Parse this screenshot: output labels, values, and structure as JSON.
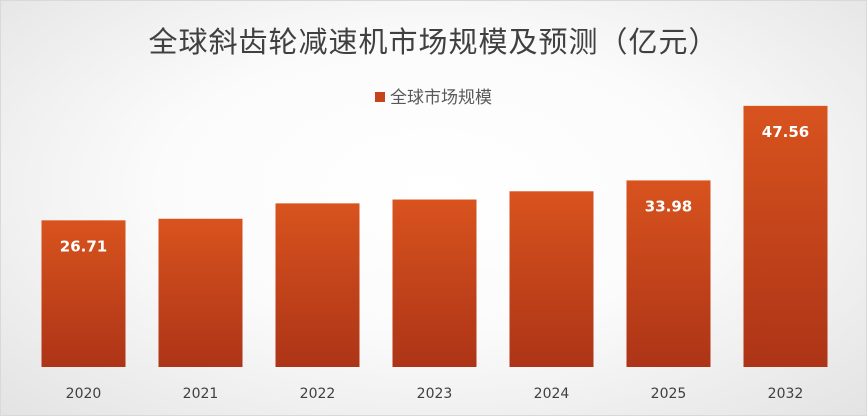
{
  "chart_data": {
    "type": "bar",
    "title": "全球斜齿轮减速机市场规模及预测（亿元）",
    "categories": [
      "2020",
      "2021",
      "2022",
      "2023",
      "2024",
      "2025",
      "2032"
    ],
    "series": [
      {
        "name": "全球市场规模",
        "values": [
          26.71,
          27.0,
          29.8,
          30.5,
          32.0,
          33.98,
          47.56
        ]
      }
    ],
    "data_labels": [
      "26.71",
      "",
      "",
      "",
      "",
      "33.98",
      "47.56"
    ],
    "ylim": [
      0,
      55
    ],
    "grid": false,
    "legend_position": "top-center",
    "colors": {
      "bar_top": "#d8531e",
      "bar_bottom": "#ad3417",
      "legend_swatch": "#c6441c",
      "data_label": "#ffffff",
      "title": "#404040",
      "tick_label": "#404040"
    }
  }
}
